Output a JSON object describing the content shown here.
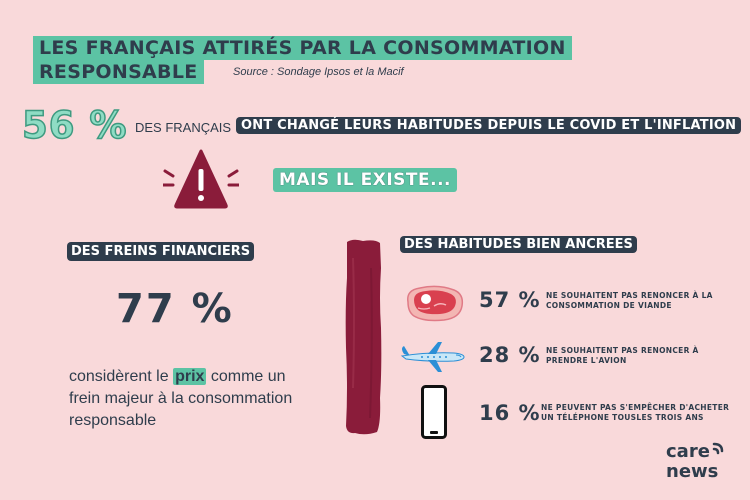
{
  "title": {
    "line1": "LES FRANÇAIS ATTIRÉS PAR LA CONSOMMATION",
    "line2": "RESPONSABLE"
  },
  "source": "Source : Sondage Ipsos et la Macif",
  "headline": {
    "percent": "56 %",
    "prefix": "DES FRANÇAIS",
    "highlight": "ONT CHANGÉ LEURS HABITUDES DEPUIS LE COVID ET L'INFLATION"
  },
  "transition": "MAIS IL EXISTE...",
  "freins": {
    "heading": "DES FREINS FINANCIERS",
    "percent": "77 %",
    "text_before": "considèrent le",
    "text_highlight": "prix",
    "text_after": "comme un frein majeur à la consommation responsable"
  },
  "habitudes": {
    "heading": "DES HABITUDES BIEN ANCREES",
    "items": [
      {
        "icon": "meat-icon",
        "percent": "57 %",
        "description_l1": "NE SOUHAITENT PAS RENONCER À LA",
        "description_l2": "CONSOMMATION DE VIANDE"
      },
      {
        "icon": "airplane-icon",
        "percent": "28 %",
        "description_l1": "NE SOUHAITENT PAS RENONCER À",
        "description_l2": "PRENDRE L'AVION"
      },
      {
        "icon": "smartphone-icon",
        "percent": "16 %",
        "description_l1": "NE PEUVENT PAS S'EMPÊCHER D'ACHETER",
        "description_l2": "UN TÉLÉPHONE TOUSLES TROIS ANS"
      }
    ]
  },
  "logo": {
    "line1": "care",
    "line2": "news"
  },
  "colors": {
    "background": "#f9d9da",
    "accent_green": "#5cc3a4",
    "dark_navy": "#2f3d4c",
    "burgundy": "#8a1c3a"
  }
}
